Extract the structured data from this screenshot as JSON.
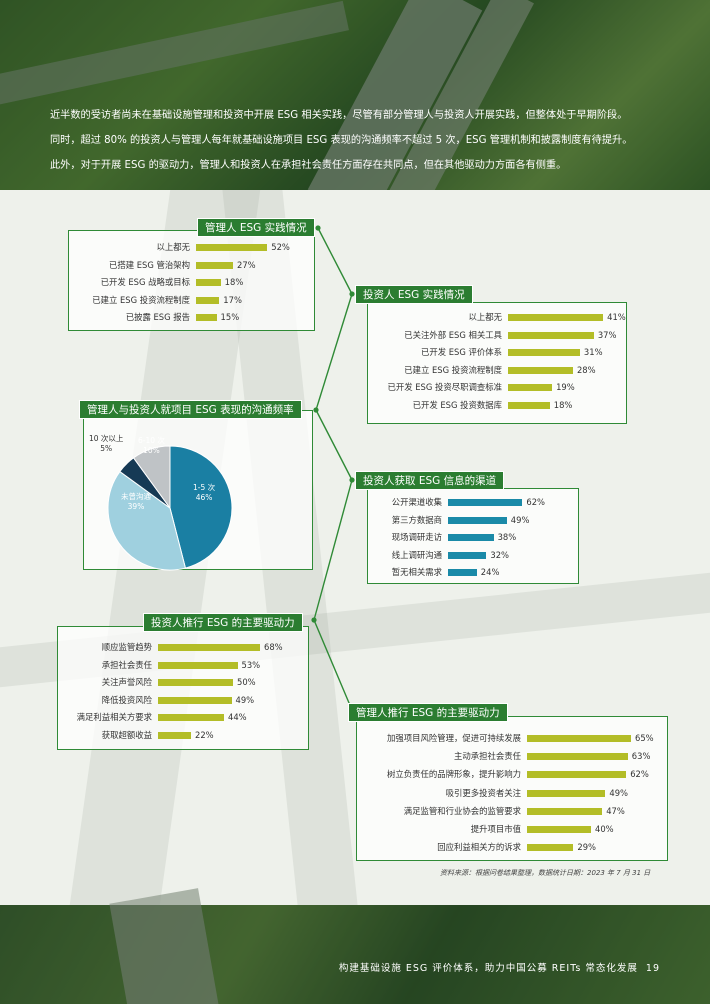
{
  "intro_lines": [
    "近半数的受访者尚未在基础设施管理和投资中开展 ESG 相关实践，尽管有部分管理人与投资人开展实践，但整体处于早期阶段。",
    "同时，超过 80% 的投资人与管理人每年就基础设施项目 ESG 表现的沟通频率不超过 5 次，ESG 管理机制和披露制度有待提升。",
    "此外，对于开展 ESG 的驱动力，管理人和投资人在承担社会责任方面存在共同点，但在其他驱动力方面各有侧重。"
  ],
  "footer": {
    "title": "构建基础设施 ESG 评价体系，助力中国公募 REITs 常态化发展",
    "page": "19"
  },
  "source": "资料来源：根据问卷结果整理，数据统计日期：2023 年 7 月 31 日",
  "colors": {
    "green": "#2b7d31",
    "lime": "#b3bd27",
    "teal": "#1a8aa8"
  },
  "charts": {
    "mgr_practice": {
      "title": "管理人 ESG 实践情况",
      "rows": [
        {
          "label": "以上都无",
          "value": 52,
          "pct": "52%"
        },
        {
          "label": "已搭建 ESG 管治架构",
          "value": 27,
          "pct": "27%"
        },
        {
          "label": "已开发 ESG 战略或目标",
          "value": 18,
          "pct": "18%"
        },
        {
          "label": "已建立 ESG 投资流程制度",
          "value": 17,
          "pct": "17%"
        },
        {
          "label": "已披露 ESG 报告",
          "value": 15,
          "pct": "15%"
        }
      ]
    },
    "inv_practice": {
      "title": "投资人 ESG 实践情况",
      "rows": [
        {
          "label": "以上都无",
          "value": 41,
          "pct": "41%"
        },
        {
          "label": "已关注外部 ESG 相关工具",
          "value": 37,
          "pct": "37%"
        },
        {
          "label": "已开发 ESG 评价体系",
          "value": 31,
          "pct": "31%"
        },
        {
          "label": "已建立 ESG 投资流程制度",
          "value": 28,
          "pct": "28%"
        },
        {
          "label": "已开发 ESG 投资尽职调查标准",
          "value": 19,
          "pct": "19%"
        },
        {
          "label": "已开发 ESG 投资数据库",
          "value": 18,
          "pct": "18%"
        }
      ]
    },
    "comm_freq": {
      "title": "管理人与投资人就项目 ESG 表现的沟通频率",
      "slices": [
        {
          "name": "1-5 次",
          "value": 46,
          "pct": "46%",
          "color": "#1a7fa3"
        },
        {
          "name": "未曾沟通",
          "value": 39,
          "pct": "39%",
          "color": "#9fd0df"
        },
        {
          "name": "10 次以上",
          "value": 5,
          "pct": "5%",
          "color": "#163a55"
        },
        {
          "name": "6-10 次",
          "value": 10,
          "pct": "10%",
          "color": "#bfc3c6"
        }
      ]
    },
    "inv_channels": {
      "title": "投资人获取 ESG 信息的渠道",
      "rows": [
        {
          "label": "公开渠道收集",
          "value": 62,
          "pct": "62%"
        },
        {
          "label": "第三方数据商",
          "value": 49,
          "pct": "49%"
        },
        {
          "label": "现场调研走访",
          "value": 38,
          "pct": "38%"
        },
        {
          "label": "线上调研沟通",
          "value": 32,
          "pct": "32%"
        },
        {
          "label": "暂无相关需求",
          "value": 24,
          "pct": "24%"
        }
      ]
    },
    "inv_drivers": {
      "title": "投资人推行 ESG 的主要驱动力",
      "rows": [
        {
          "label": "顺应监管趋势",
          "value": 68,
          "pct": "68%"
        },
        {
          "label": "承担社会责任",
          "value": 53,
          "pct": "53%"
        },
        {
          "label": "关注声誉风险",
          "value": 50,
          "pct": "50%"
        },
        {
          "label": "降低投资风险",
          "value": 49,
          "pct": "49%"
        },
        {
          "label": "满足利益相关方要求",
          "value": 44,
          "pct": "44%"
        },
        {
          "label": "获取超额收益",
          "value": 22,
          "pct": "22%"
        }
      ]
    },
    "mgr_drivers": {
      "title": "管理人推行 ESG 的主要驱动力",
      "rows": [
        {
          "label": "加强项目风险管理，促进可持续发展",
          "value": 65,
          "pct": "65%"
        },
        {
          "label": "主动承担社会责任",
          "value": 63,
          "pct": "63%"
        },
        {
          "label": "树立负责任的品牌形象，提升影响力",
          "value": 62,
          "pct": "62%"
        },
        {
          "label": "吸引更多投资者关注",
          "value": 49,
          "pct": "49%"
        },
        {
          "label": "满足监管和行业协会的监管要求",
          "value": 47,
          "pct": "47%"
        },
        {
          "label": "提升项目市值",
          "value": 40,
          "pct": "40%"
        },
        {
          "label": "回应利益相关方的诉求",
          "value": 29,
          "pct": "29%"
        }
      ]
    }
  }
}
